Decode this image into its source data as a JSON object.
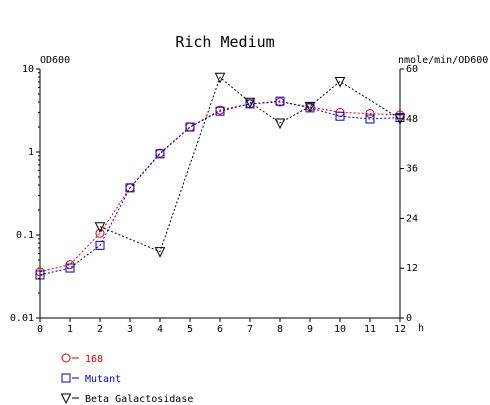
{
  "chart_data": {
    "type": "line",
    "title": "Rich Medium",
    "y_left_label": "OD600",
    "y_right_label": "nmole/min/OD600",
    "xlabel": "h",
    "x": [
      0,
      1,
      2,
      3,
      4,
      5,
      6,
      7,
      8,
      9,
      10,
      11,
      12
    ],
    "x_ticks": [
      "0",
      "1",
      "2",
      "3",
      "4",
      "5",
      "6",
      "7",
      "8",
      "9",
      "10",
      "11",
      "12"
    ],
    "y_left_scale": "log",
    "y_left_range": [
      0.01,
      10
    ],
    "y_left_ticks": [
      "0.01",
      "0.1",
      "1",
      "10"
    ],
    "y_right_range": [
      0,
      60
    ],
    "y_right_ticks": [
      "0",
      "12",
      "24",
      "36",
      "48",
      "60"
    ],
    "series": [
      {
        "name": "168",
        "axis": "left",
        "color": "#e00000",
        "marker": "circle",
        "values": [
          0.036,
          0.044,
          0.105,
          0.37,
          0.97,
          2.0,
          3.2,
          3.8,
          4.0,
          3.5,
          3.0,
          2.9,
          2.8
        ]
      },
      {
        "name": "Mutant",
        "axis": "left",
        "color": "#0000cc",
        "marker": "square",
        "values": [
          0.033,
          0.04,
          0.075,
          0.37,
          0.95,
          2.0,
          3.1,
          3.8,
          4.1,
          3.4,
          2.7,
          2.5,
          2.6
        ]
      },
      {
        "name": "Beta Galactosidase",
        "axis": "right",
        "color": "#000000",
        "marker": "triangle-down",
        "values": [
          null,
          null,
          22,
          null,
          16,
          null,
          58,
          52,
          47,
          51,
          57,
          null,
          48
        ]
      }
    ],
    "grid": false,
    "legend_placement": "bottom-left"
  }
}
